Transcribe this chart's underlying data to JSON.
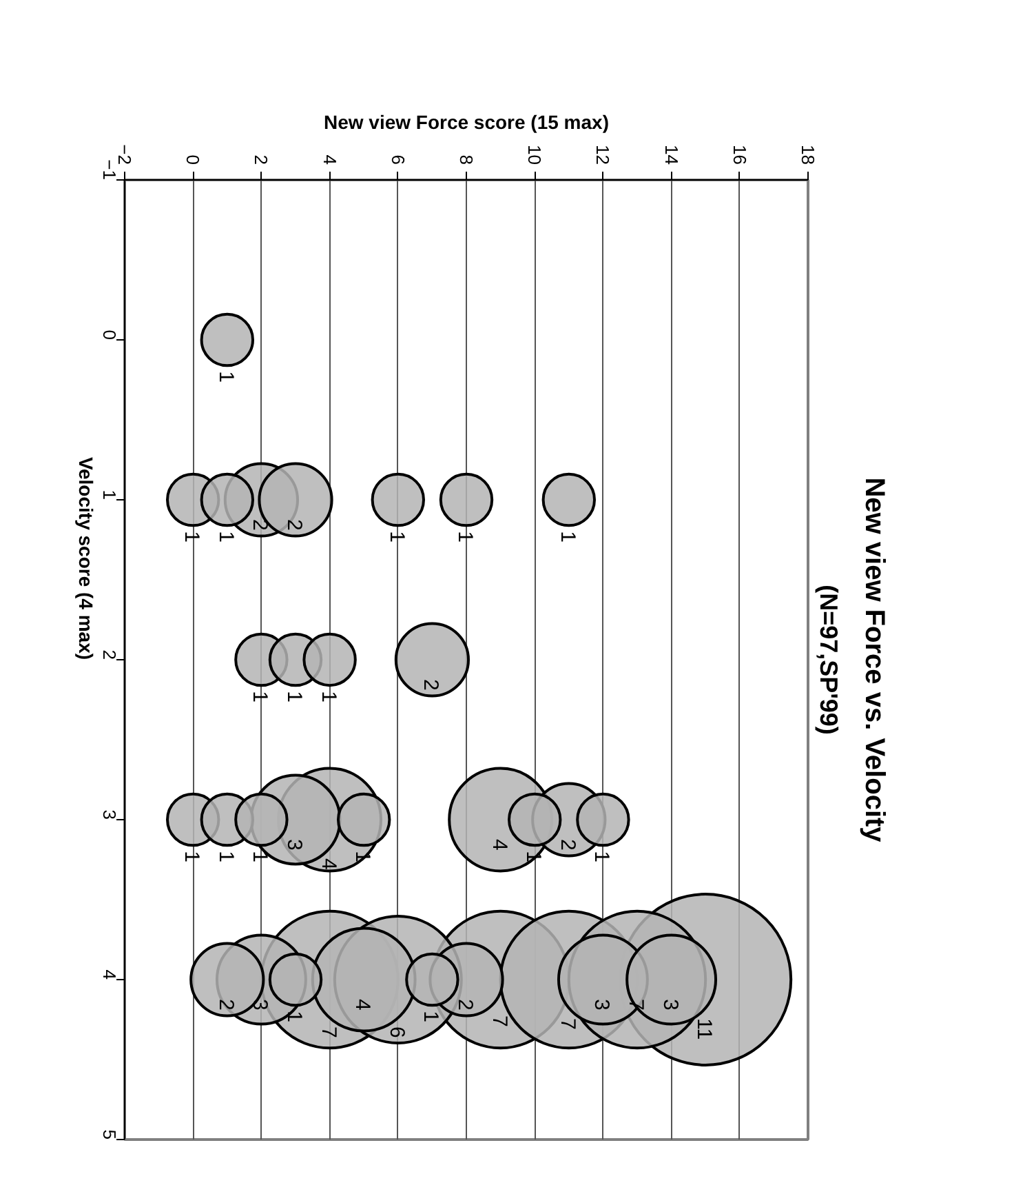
{
  "chart_data": {
    "type": "bubble",
    "title": "New view Force vs. Velocity",
    "subtitle": "(N=97,SP'99)",
    "xlabel": "New view Force score (15 max)",
    "ylabel": "Velocity score (4 max)",
    "xlim": [
      -2,
      18
    ],
    "xticks": [
      -2,
      0,
      2,
      4,
      6,
      8,
      10,
      12,
      14,
      16,
      18
    ],
    "ylim": [
      5,
      -1
    ],
    "yticks": [
      -1,
      0,
      1,
      2,
      3,
      4,
      5
    ],
    "grid": "x",
    "series": [
      {
        "color": "#b4b4b4",
        "x": [
          1,
          0,
          1,
          2,
          3,
          6,
          8,
          11,
          2,
          3,
          4,
          7,
          0,
          1,
          2,
          3,
          4,
          5,
          9,
          10,
          11,
          12,
          1,
          2,
          3,
          4,
          5,
          6,
          7,
          8,
          9,
          11,
          12,
          13,
          14,
          15
        ],
        "values": [
          0,
          1,
          1,
          1,
          1,
          1,
          1,
          1,
          2,
          2,
          2,
          2,
          3,
          3,
          3,
          3,
          3,
          3,
          3,
          3,
          3,
          3,
          4,
          4,
          4,
          4,
          4,
          4,
          4,
          4,
          4,
          4,
          4,
          4,
          4,
          4
        ],
        "sizes": [
          0.09,
          0.09,
          0.09,
          0.18,
          0.18,
          0.09,
          0.09,
          0.09,
          0.09,
          0.09,
          0.09,
          0.18,
          0.09,
          0.09,
          0.09,
          0.27,
          0.36,
          0.09,
          0.36,
          0.09,
          0.18,
          0.09,
          0.18,
          0.27,
          0.09,
          0.64,
          0.36,
          0.55,
          0.09,
          0.18,
          0.64,
          0.64,
          0.27,
          0.64,
          0.27,
          1
        ]
      }
    ],
    "annotations": [
      {
        "text": "1",
        "x": 1,
        "y": 0
      },
      {
        "text": "1",
        "x": 0,
        "y": 1
      },
      {
        "text": "1",
        "x": 1,
        "y": 1
      },
      {
        "text": "2",
        "x": 2,
        "y": 1
      },
      {
        "text": "2",
        "x": 3,
        "y": 1
      },
      {
        "text": "1",
        "x": 6,
        "y": 1
      },
      {
        "text": "1",
        "x": 8,
        "y": 1
      },
      {
        "text": "1",
        "x": 11,
        "y": 1
      },
      {
        "text": "1",
        "x": 2,
        "y": 2
      },
      {
        "text": "1",
        "x": 3,
        "y": 2
      },
      {
        "text": "1",
        "x": 4,
        "y": 2
      },
      {
        "text": "2",
        "x": 7,
        "y": 2
      },
      {
        "text": "1",
        "x": 0,
        "y": 3
      },
      {
        "text": "1",
        "x": 1,
        "y": 3
      },
      {
        "text": "1",
        "x": 2,
        "y": 3
      },
      {
        "text": "3",
        "x": 3,
        "y": 3
      },
      {
        "text": "4",
        "x": 4,
        "y": 3
      },
      {
        "text": "1",
        "x": 5,
        "y": 3
      },
      {
        "text": "4",
        "x": 9,
        "y": 3
      },
      {
        "text": "1",
        "x": 10,
        "y": 3
      },
      {
        "text": "2",
        "x": 11,
        "y": 3
      },
      {
        "text": "1",
        "x": 12,
        "y": 3
      },
      {
        "text": "2",
        "x": 1,
        "y": 4
      },
      {
        "text": "3",
        "x": 2,
        "y": 4
      },
      {
        "text": "1",
        "x": 3,
        "y": 4
      },
      {
        "text": "7",
        "x": 4,
        "y": 4
      },
      {
        "text": "4",
        "x": 5,
        "y": 4
      },
      {
        "text": "6",
        "x": 6,
        "y": 4
      },
      {
        "text": "1",
        "x": 7,
        "y": 4
      },
      {
        "text": "2",
        "x": 8,
        "y": 4
      },
      {
        "text": "7",
        "x": 9,
        "y": 4
      },
      {
        "text": "7",
        "x": 11,
        "y": 4
      },
      {
        "text": "3",
        "x": 12,
        "y": 4
      },
      {
        "text": "7",
        "x": 13,
        "y": 4
      },
      {
        "text": "3",
        "x": 14,
        "y": 4
      },
      {
        "text": "11",
        "x": 15,
        "y": 4
      }
    ]
  }
}
